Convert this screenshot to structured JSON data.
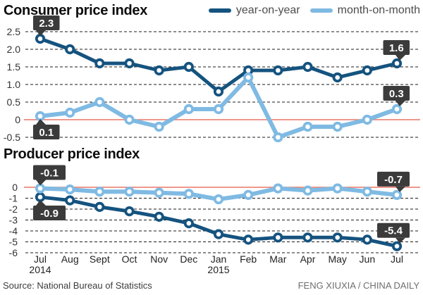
{
  "header": {
    "legend": [
      {
        "label": "year-on-year",
        "color": "#15537f"
      },
      {
        "label": "month-on-month",
        "color": "#7fbae3"
      }
    ]
  },
  "footer": {
    "source": "Source: National Bureau of Statistics",
    "credit": "FENG XIUXIA / CHINA DAILY"
  },
  "colors": {
    "yoy": "#15537f",
    "mom": "#7fbae3",
    "zero_line": "#ea7668",
    "grid": "#1b1b1b",
    "badge_bg": "#3b3b3b",
    "badge_text": "#ffffff"
  },
  "chart_data": [
    {
      "id": "cpi",
      "type": "line",
      "title": "Consumer price index",
      "categories": [
        "Jul",
        "Aug",
        "Sept",
        "Oct",
        "Nov",
        "Dec",
        "Jan",
        "Feb",
        "Mar",
        "Apr",
        "May",
        "Jun",
        "Jul"
      ],
      "series": [
        {
          "name": "year-on-year",
          "color": "#15537f",
          "values": [
            2.3,
            2.0,
            1.6,
            1.6,
            1.4,
            1.5,
            0.8,
            1.4,
            1.4,
            1.5,
            1.2,
            1.4,
            1.6
          ]
        },
        {
          "name": "month-on-month",
          "color": "#7fbae3",
          "values": [
            0.1,
            0.2,
            0.5,
            0.0,
            -0.2,
            0.3,
            0.3,
            1.2,
            -0.5,
            -0.2,
            -0.2,
            0.0,
            0.3
          ]
        }
      ],
      "ylim": [
        -0.5,
        2.5
      ],
      "yticks": [
        {
          "label": "2.5",
          "value": 2.5
        },
        {
          "label": "2.0",
          "value": 2.0
        },
        {
          "label": "1.5",
          "value": 1.5
        },
        {
          "label": "1.0",
          "value": 1.0
        },
        {
          "label": "0.5",
          "value": 0.5
        },
        {
          "label": "0",
          "value": 0
        },
        {
          "label": "-0.5",
          "value": -0.5
        }
      ],
      "zero_line_value": 0,
      "grid": "dashed",
      "legend_position": "top-right",
      "show_x_labels": false,
      "annotations": [
        {
          "text": "2.3",
          "series": 0,
          "index": 0,
          "position": "above",
          "tail": "left"
        },
        {
          "text": "0.1",
          "series": 1,
          "index": 0,
          "position": "below",
          "tail": "left"
        },
        {
          "text": "1.6",
          "series": 0,
          "index": 12,
          "position": "above",
          "tail": "right"
        },
        {
          "text": "0.3",
          "series": 1,
          "index": 12,
          "position": "above",
          "tail": "right"
        }
      ]
    },
    {
      "id": "ppi",
      "type": "line",
      "title": "Producer price index",
      "categories": [
        "Jul",
        "Aug",
        "Sept",
        "Oct",
        "Nov",
        "Dec",
        "Jan",
        "Feb",
        "Mar",
        "Apr",
        "May",
        "Jun",
        "Jul"
      ],
      "year_labels": [
        {
          "index": 0,
          "label": "2014"
        },
        {
          "index": 6,
          "label": "2015"
        }
      ],
      "series": [
        {
          "name": "year-on-year",
          "color": "#15537f",
          "values": [
            -0.9,
            -1.2,
            -1.8,
            -2.2,
            -2.7,
            -3.3,
            -4.3,
            -4.8,
            -4.6,
            -4.6,
            -4.6,
            -4.8,
            -5.4
          ]
        },
        {
          "name": "month-on-month",
          "color": "#7fbae3",
          "values": [
            -0.1,
            -0.2,
            -0.4,
            -0.4,
            -0.5,
            -0.6,
            -1.1,
            -0.7,
            -0.1,
            -0.3,
            -0.1,
            -0.4,
            -0.7
          ]
        }
      ],
      "ylim": [
        -6,
        0
      ],
      "yticks": [
        {
          "label": "0",
          "value": 0
        },
        {
          "label": "-1",
          "value": -1
        },
        {
          "label": "-2",
          "value": -2
        },
        {
          "label": "-3",
          "value": -3
        },
        {
          "label": "-4",
          "value": -4
        },
        {
          "label": "-5",
          "value": -5
        },
        {
          "label": "-6",
          "value": -6
        }
      ],
      "zero_line_value": 0,
      "grid": "dashed",
      "show_x_labels": true,
      "annotations": [
        {
          "text": "-0.1",
          "series": 1,
          "index": 0,
          "position": "above",
          "tail": "left"
        },
        {
          "text": "-0.9",
          "series": 0,
          "index": 0,
          "position": "below",
          "tail": "left"
        },
        {
          "text": "-0.7",
          "series": 1,
          "index": 12,
          "position": "above",
          "tail": "right"
        },
        {
          "text": "-5.4",
          "series": 0,
          "index": 12,
          "position": "above",
          "tail": "right"
        }
      ]
    }
  ]
}
